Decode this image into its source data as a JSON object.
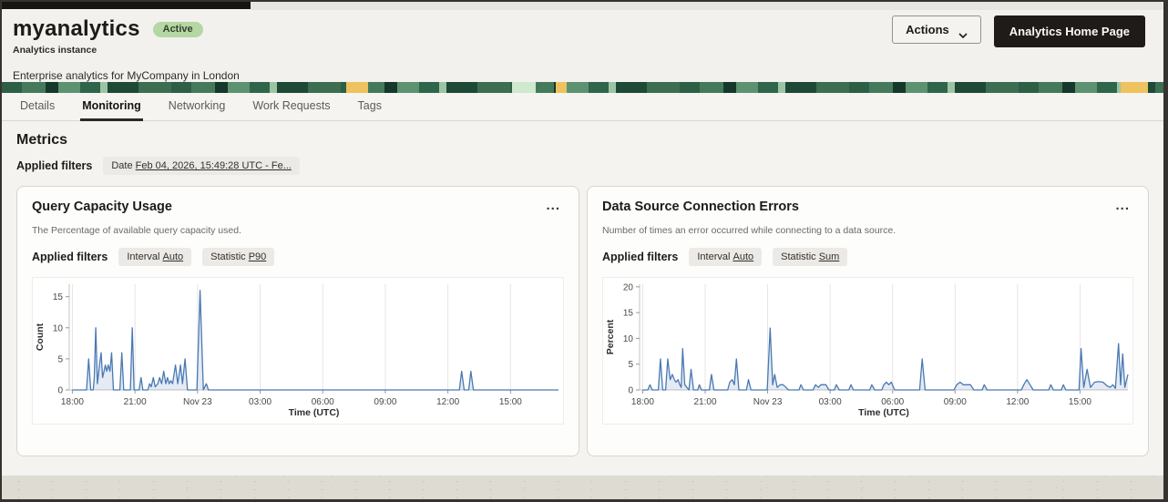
{
  "header": {
    "title": "myanalytics",
    "status_badge": "Active",
    "subtitle": "Analytics instance",
    "description": "Enterprise analytics for MyCompany in London",
    "actions_button": "Actions",
    "home_button": "Analytics Home Page"
  },
  "tabs": [
    {
      "label": "Details"
    },
    {
      "label": "Monitoring"
    },
    {
      "label": "Networking"
    },
    {
      "label": "Work Requests"
    },
    {
      "label": "Tags"
    }
  ],
  "metrics": {
    "heading": "Metrics",
    "applied_filters_label": "Applied filters",
    "date_filter": {
      "label": "Date",
      "value": "Feb 04, 2026, 15:49:28 UTC - Fe..."
    }
  },
  "cards": [
    {
      "title": "Query Capacity Usage",
      "menu_icon": "...",
      "description": "The Percentage of available query capacity used.",
      "applied_filters_label": "Applied filters",
      "filter_interval": {
        "label": "Interval",
        "value": "Auto"
      },
      "filter_statistic": {
        "label": "Statistic",
        "value": "P90"
      }
    },
    {
      "title": "Data Source Connection Errors",
      "menu_icon": "...",
      "description": "Number of times an error occurred while connecting to a data source.",
      "applied_filters_label": "Applied filters",
      "filter_interval": {
        "label": "Interval",
        "value": "Auto"
      },
      "filter_statistic": {
        "label": "Statistic",
        "value": "Sum"
      }
    }
  ],
  "colors": {
    "line_blue": "#4a79b2",
    "badge_green": "#b5d7a3",
    "primary_button_bg": "#1e1b18"
  },
  "chart_data": [
    {
      "type": "area",
      "title": "Query Capacity Usage",
      "xlabel": "Time (UTC)",
      "ylabel": "Count",
      "legend": "none",
      "grid": "vertical-only",
      "x_unit_hours_from": "18:00 Nov 22",
      "xlim": [
        -0.15,
        23.3
      ],
      "ylim": [
        0,
        17
      ],
      "y_ticks": [
        0,
        5,
        10,
        15
      ],
      "x_ticks": [
        {
          "pos": 0,
          "label": "18:00"
        },
        {
          "pos": 3,
          "label": "21:00"
        },
        {
          "pos": 6,
          "label": "Nov 23"
        },
        {
          "pos": 9,
          "label": "03:00"
        },
        {
          "pos": 12,
          "label": "06:00"
        },
        {
          "pos": 15,
          "label": "09:00"
        },
        {
          "pos": 18,
          "label": "12:00"
        },
        {
          "pos": 21,
          "label": "15:00"
        }
      ],
      "line_color": "#4a79b2",
      "fill_opacity": 0.15,
      "points": [
        [
          0,
          0
        ],
        [
          0.68,
          0
        ],
        [
          0.78,
          5
        ],
        [
          0.88,
          0
        ],
        [
          1.0,
          0
        ],
        [
          1.05,
          2
        ],
        [
          1.12,
          10
        ],
        [
          1.2,
          1
        ],
        [
          1.3,
          4
        ],
        [
          1.38,
          6
        ],
        [
          1.45,
          2
        ],
        [
          1.52,
          3
        ],
        [
          1.58,
          4
        ],
        [
          1.65,
          3
        ],
        [
          1.72,
          4
        ],
        [
          1.8,
          3
        ],
        [
          1.88,
          6
        ],
        [
          1.97,
          0
        ],
        [
          2.28,
          0
        ],
        [
          2.37,
          6
        ],
        [
          2.46,
          0
        ],
        [
          2.78,
          0
        ],
        [
          2.87,
          10
        ],
        [
          2.96,
          0
        ],
        [
          3.2,
          0
        ],
        [
          3.29,
          2
        ],
        [
          3.38,
          0
        ],
        [
          3.62,
          0
        ],
        [
          3.7,
          1
        ],
        [
          3.78,
          0.5
        ],
        [
          3.88,
          2
        ],
        [
          3.97,
          0.5
        ],
        [
          4.1,
          1
        ],
        [
          4.18,
          2
        ],
        [
          4.28,
          1
        ],
        [
          4.38,
          3
        ],
        [
          4.48,
          1
        ],
        [
          4.56,
          2
        ],
        [
          4.64,
          1
        ],
        [
          4.72,
          1.5
        ],
        [
          4.8,
          1
        ],
        [
          4.94,
          4
        ],
        [
          5.05,
          1
        ],
        [
          5.18,
          4
        ],
        [
          5.28,
          1
        ],
        [
          5.4,
          5
        ],
        [
          5.52,
          0
        ],
        [
          5.97,
          0
        ],
        [
          6.12,
          16
        ],
        [
          6.28,
          0
        ],
        [
          6.42,
          1
        ],
        [
          6.52,
          0
        ],
        [
          18.55,
          0
        ],
        [
          18.66,
          3
        ],
        [
          18.78,
          0
        ],
        [
          19.0,
          0
        ],
        [
          19.1,
          3
        ],
        [
          19.22,
          0
        ],
        [
          23.3,
          0
        ]
      ]
    },
    {
      "type": "area",
      "title": "Data Source Connection Errors",
      "xlabel": "Time (UTC)",
      "ylabel": "Percent",
      "legend": "none",
      "grid": "vertical-only",
      "x_unit_hours_from": "18:00 Nov 22",
      "xlim": [
        -0.15,
        23.3
      ],
      "ylim": [
        0,
        20.5
      ],
      "y_ticks": [
        0,
        5,
        10,
        15,
        20
      ],
      "x_ticks": [
        {
          "pos": 0,
          "label": "18:00"
        },
        {
          "pos": 3,
          "label": "21:00"
        },
        {
          "pos": 6,
          "label": "Nov 23"
        },
        {
          "pos": 9,
          "label": "03:00"
        },
        {
          "pos": 12,
          "label": "06:00"
        },
        {
          "pos": 15,
          "label": "09:00"
        },
        {
          "pos": 18,
          "label": "12:00"
        },
        {
          "pos": 21,
          "label": "15:00"
        }
      ],
      "line_color": "#4a79b2",
      "fill_opacity": 0.15,
      "points": [
        [
          0,
          0
        ],
        [
          0.25,
          0
        ],
        [
          0.35,
          1
        ],
        [
          0.46,
          0
        ],
        [
          0.75,
          0
        ],
        [
          0.85,
          6
        ],
        [
          0.96,
          0
        ],
        [
          1.1,
          0
        ],
        [
          1.2,
          6
        ],
        [
          1.32,
          2
        ],
        [
          1.42,
          3
        ],
        [
          1.52,
          2
        ],
        [
          1.6,
          1.5
        ],
        [
          1.7,
          2
        ],
        [
          1.78,
          1
        ],
        [
          1.85,
          0.5
        ],
        [
          1.92,
          8
        ],
        [
          2.02,
          1
        ],
        [
          2.12,
          0.5
        ],
        [
          2.22,
          0
        ],
        [
          2.32,
          4
        ],
        [
          2.44,
          0
        ],
        [
          2.64,
          0
        ],
        [
          2.72,
          1
        ],
        [
          2.82,
          0
        ],
        [
          3.2,
          0
        ],
        [
          3.3,
          3
        ],
        [
          3.42,
          0
        ],
        [
          4.08,
          0
        ],
        [
          4.18,
          1.5
        ],
        [
          4.3,
          2
        ],
        [
          4.4,
          1
        ],
        [
          4.5,
          6
        ],
        [
          4.62,
          0
        ],
        [
          4.98,
          0
        ],
        [
          5.08,
          2
        ],
        [
          5.2,
          0
        ],
        [
          5.98,
          0
        ],
        [
          6.12,
          12
        ],
        [
          6.24,
          1
        ],
        [
          6.34,
          3
        ],
        [
          6.46,
          0.5
        ],
        [
          6.6,
          1
        ],
        [
          6.74,
          1
        ],
        [
          6.88,
          0.5
        ],
        [
          7.0,
          0
        ],
        [
          7.5,
          0
        ],
        [
          7.6,
          1
        ],
        [
          7.72,
          0
        ],
        [
          8.18,
          0
        ],
        [
          8.3,
          1
        ],
        [
          8.44,
          0.5
        ],
        [
          8.55,
          1
        ],
        [
          8.68,
          1
        ],
        [
          8.8,
          1
        ],
        [
          8.94,
          0
        ],
        [
          9.2,
          0
        ],
        [
          9.3,
          1
        ],
        [
          9.44,
          0
        ],
        [
          9.9,
          0
        ],
        [
          10.0,
          1
        ],
        [
          10.12,
          0
        ],
        [
          10.9,
          0
        ],
        [
          11.0,
          1
        ],
        [
          11.14,
          0
        ],
        [
          11.48,
          0
        ],
        [
          11.58,
          1
        ],
        [
          11.7,
          1.5
        ],
        [
          11.82,
          1
        ],
        [
          11.94,
          1.5
        ],
        [
          12.1,
          0
        ],
        [
          13.3,
          0
        ],
        [
          13.42,
          6
        ],
        [
          13.56,
          0
        ],
        [
          14.95,
          0
        ],
        [
          15.08,
          1
        ],
        [
          15.24,
          1.5
        ],
        [
          15.4,
          1
        ],
        [
          15.56,
          1
        ],
        [
          15.74,
          1
        ],
        [
          15.9,
          0
        ],
        [
          16.3,
          0
        ],
        [
          16.4,
          1
        ],
        [
          16.54,
          0
        ],
        [
          18.18,
          0
        ],
        [
          18.3,
          1
        ],
        [
          18.45,
          2
        ],
        [
          18.6,
          1
        ],
        [
          18.75,
          0
        ],
        [
          19.5,
          0
        ],
        [
          19.6,
          1
        ],
        [
          19.72,
          0
        ],
        [
          20.1,
          0
        ],
        [
          20.2,
          1
        ],
        [
          20.32,
          0
        ],
        [
          20.95,
          0
        ],
        [
          21.05,
          8
        ],
        [
          21.18,
          0.5
        ],
        [
          21.34,
          4
        ],
        [
          21.5,
          0.5
        ],
        [
          21.7,
          1.5
        ],
        [
          21.9,
          1.6
        ],
        [
          22.1,
          1.5
        ],
        [
          22.3,
          0.8
        ],
        [
          22.45,
          0.5
        ],
        [
          22.58,
          1
        ],
        [
          22.7,
          0.3
        ],
        [
          22.85,
          9
        ],
        [
          22.95,
          1
        ],
        [
          23.05,
          7
        ],
        [
          23.15,
          0.5
        ],
        [
          23.3,
          3
        ]
      ]
    }
  ]
}
